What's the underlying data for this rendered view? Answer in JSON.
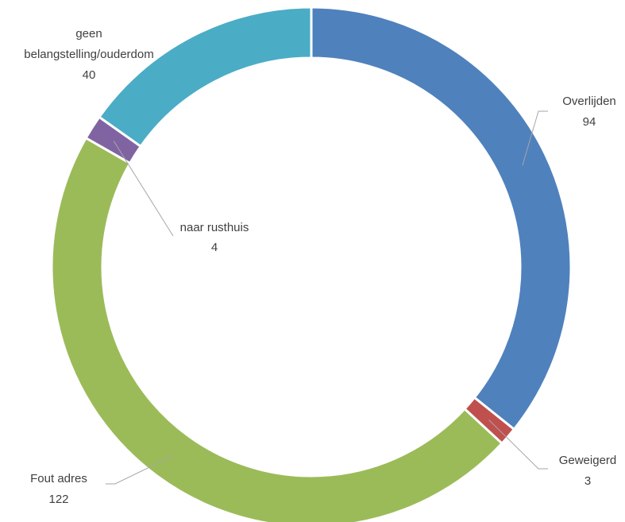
{
  "chart_data": {
    "type": "pie",
    "variant": "doughnut",
    "title": "",
    "categories": [
      "Overlijden",
      "Geweigerd",
      "Fout adres",
      "naar rusthuis",
      "geen belangstelling/ouderdom"
    ],
    "values": [
      94,
      3,
      122,
      4,
      40
    ],
    "colors": [
      "#4F81BD",
      "#C0504D",
      "#9BBB59",
      "#8064A2",
      "#4BACC6"
    ],
    "legend": "none",
    "labels": [
      {
        "name_lines": [
          "Overlijden"
        ],
        "value": "94"
      },
      {
        "name_lines": [
          "Geweigerd"
        ],
        "value": "3"
      },
      {
        "name_lines": [
          "Fout adres"
        ],
        "value": "122"
      },
      {
        "name_lines": [
          "naar rusthuis"
        ],
        "value": "4"
      },
      {
        "name_lines": [
          "geen",
          "belangstelling/ouderdom"
        ],
        "value": "40"
      }
    ]
  }
}
